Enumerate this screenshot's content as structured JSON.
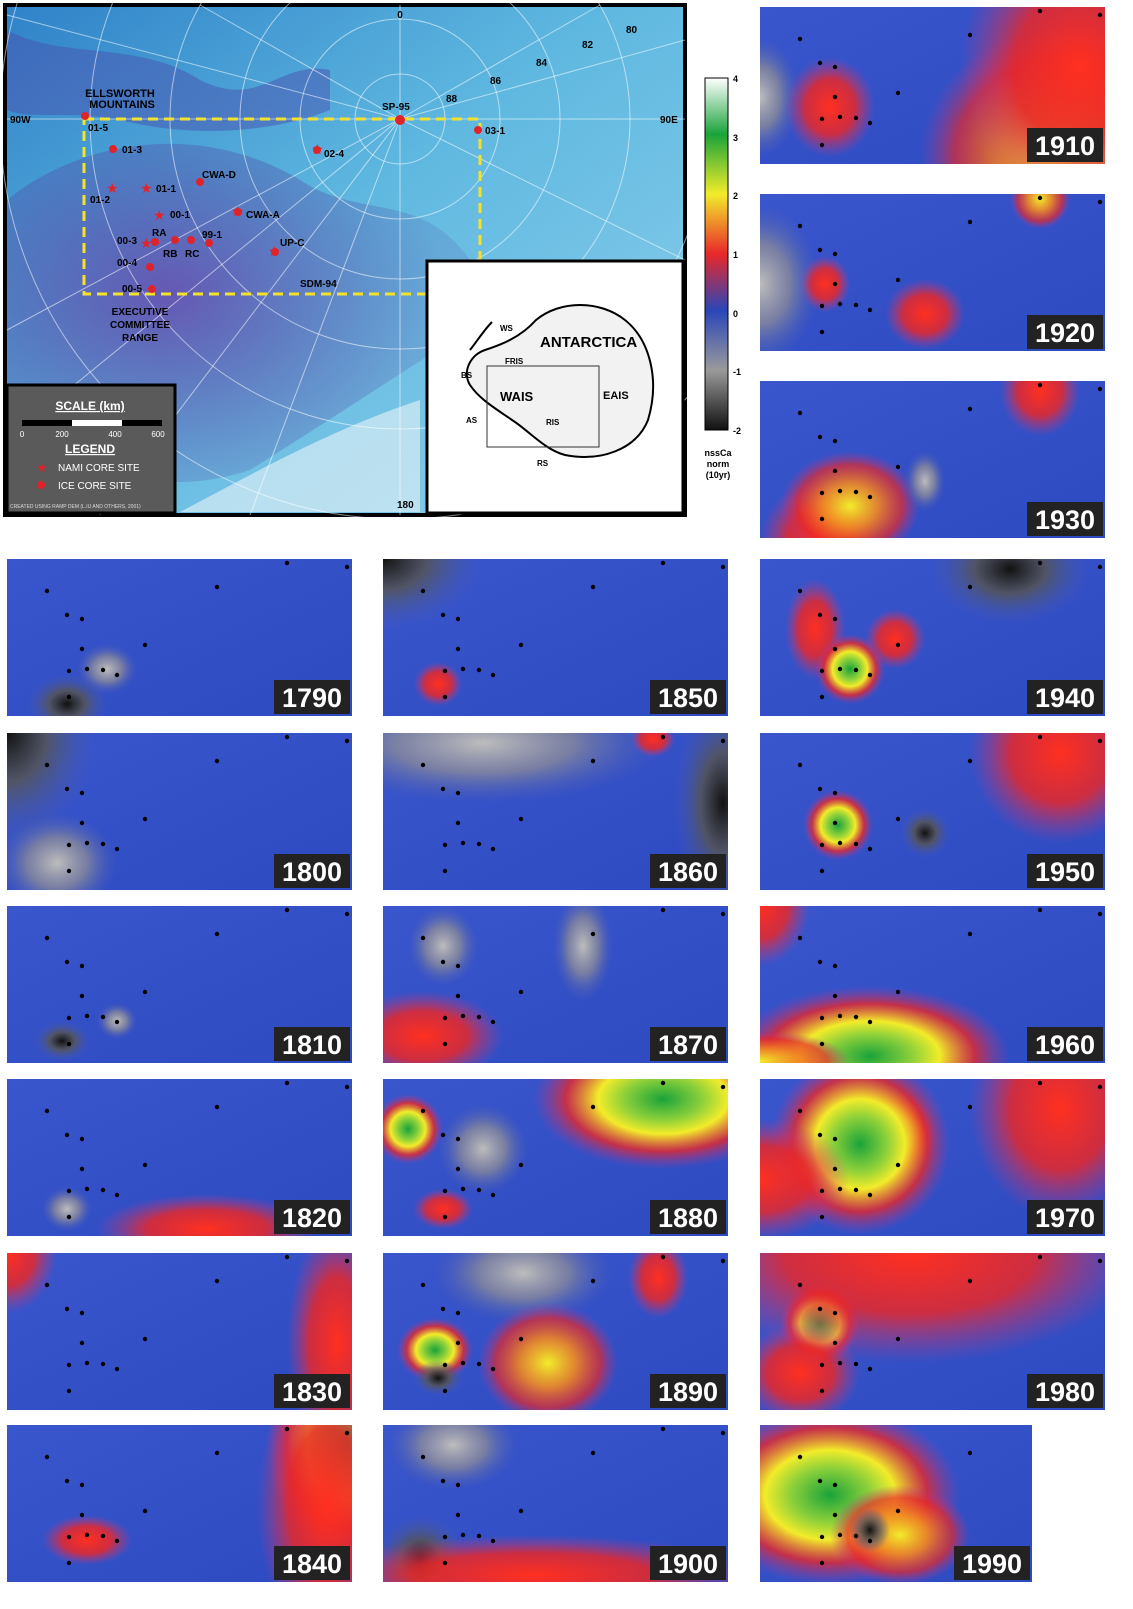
{
  "map": {
    "polar_labels": [
      "0",
      "80",
      "82",
      "84",
      "86",
      "88",
      "90W",
      "90E",
      "180"
    ],
    "regions": [
      "ELLSWORTH",
      "MOUNTAINS",
      "EXECUTIVE",
      "COMMITTEE",
      "RANGE"
    ],
    "sites": [
      "SP-95",
      "01-5",
      "01-3",
      "01-1",
      "01-2",
      "CWA-D",
      "00-1",
      "CWA-A",
      "00-3",
      "RA",
      "RB",
      "RC",
      "99-1",
      "00-4",
      "UP-C",
      "SDM-94",
      "00-5",
      "02-4",
      "03-1"
    ],
    "scale_title": "SCALE (km)",
    "scale_ticks": [
      "0",
      "200",
      "400",
      "600"
    ],
    "legend_title": "LEGEND",
    "legend_items": [
      {
        "label": "NAMI CORE SITE",
        "marker": "star"
      },
      {
        "label": "ICE CORE SITE",
        "marker": "dot"
      }
    ],
    "credit": "CREATED USING RAMP DEM (L.IU AND OTHERS, 2001)"
  },
  "inset": {
    "title": "ANTARCTICA",
    "labels": [
      "WS",
      "FRIS",
      "BS",
      "WAIS",
      "EAIS",
      "AS",
      "RIS",
      "RS"
    ]
  },
  "colorbar": {
    "ticks": [
      "4",
      "3",
      "2",
      "1",
      "0",
      "-1",
      "-2"
    ],
    "label_lines": [
      "nssCa",
      "norm",
      "(10yr)"
    ],
    "gradient_colors": [
      "#ffffff",
      "#1aa33a",
      "#f2ec2a",
      "#e8272a",
      "#2a46b8",
      "#9a9a9a",
      "#111111"
    ]
  },
  "panels": [
    "1790",
    "1800",
    "1810",
    "1820",
    "1830",
    "1840",
    "1850",
    "1860",
    "1870",
    "1880",
    "1890",
    "1900",
    "1910",
    "1920",
    "1930",
    "1940",
    "1950",
    "1960",
    "1970",
    "1980",
    "1990"
  ],
  "colors": {
    "base_blue": "#3550c8",
    "red": "#e8272a",
    "yellow": "#f2ec2a",
    "green": "#1aa33a",
    "dashed_box": "#f5e12a",
    "site_red": "#e0232a",
    "map_ice": "#5fb8e0",
    "map_rock": "#7a3fae",
    "label_bg": "#222222"
  }
}
